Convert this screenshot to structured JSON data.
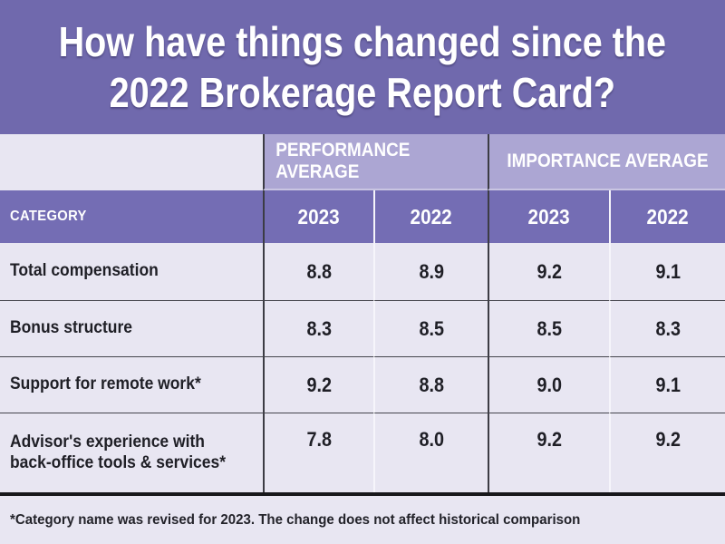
{
  "title": {
    "line1": "How have things changed since the",
    "line2": "2022 Brokerage Report Card?"
  },
  "table": {
    "group_headers": {
      "performance": "PERFORMANCE AVERAGE",
      "importance": "IMPORTANCE AVERAGE"
    },
    "category_header": "CATEGORY",
    "year_headers": {
      "perf_2023": "2023",
      "perf_2022": "2022",
      "imp_2023": "2023",
      "imp_2022": "2022"
    },
    "rows": [
      {
        "category": "Total compensation",
        "values": [
          "8.8",
          "8.9",
          "9.2",
          "9.1"
        ]
      },
      {
        "category": "Bonus structure",
        "values": [
          "8.3",
          "8.5",
          "8.5",
          "8.3"
        ]
      },
      {
        "category": "Support for remote work*",
        "values": [
          "9.2",
          "8.8",
          "9.0",
          "9.1"
        ]
      },
      {
        "category": "Advisor's experience with back-office tools & services*",
        "values": [
          "7.8",
          "8.0",
          "9.2",
          "9.2"
        ]
      }
    ]
  },
  "footnote": "*Category name was revised for 2023. The change does not affect historical comparison",
  "colors": {
    "title_background": "#7069ad",
    "group_band_background": "#aca6d3",
    "header_row_background": "#746db4",
    "cell_background": "#e8e6f2",
    "dark_divider": "#3c3c44",
    "text_dark": "#1f1f26",
    "text_white": "#ffffff"
  },
  "chart_data": {
    "type": "table",
    "title": "How have things changed since the 2022 Brokerage Report Card?",
    "column_groups": [
      "Performance average",
      "Importance average"
    ],
    "columns": [
      "Category",
      "Performance 2023",
      "Performance 2022",
      "Importance 2023",
      "Importance 2022"
    ],
    "rows": [
      {
        "category": "Total compensation",
        "performance_2023": 8.8,
        "performance_2022": 8.9,
        "importance_2023": 9.2,
        "importance_2022": 9.1
      },
      {
        "category": "Bonus structure",
        "performance_2023": 8.3,
        "performance_2022": 8.5,
        "importance_2023": 8.5,
        "importance_2022": 8.3
      },
      {
        "category": "Support for remote work*",
        "performance_2023": 9.2,
        "performance_2022": 8.8,
        "importance_2023": 9.0,
        "importance_2022": 9.1
      },
      {
        "category": "Advisor's experience with back-office tools & services*",
        "performance_2023": 7.8,
        "performance_2022": 8.0,
        "importance_2023": 9.2,
        "importance_2022": 9.2
      }
    ],
    "footnote": "*Category name was revised for 2023. The change does not affect historical comparison"
  }
}
